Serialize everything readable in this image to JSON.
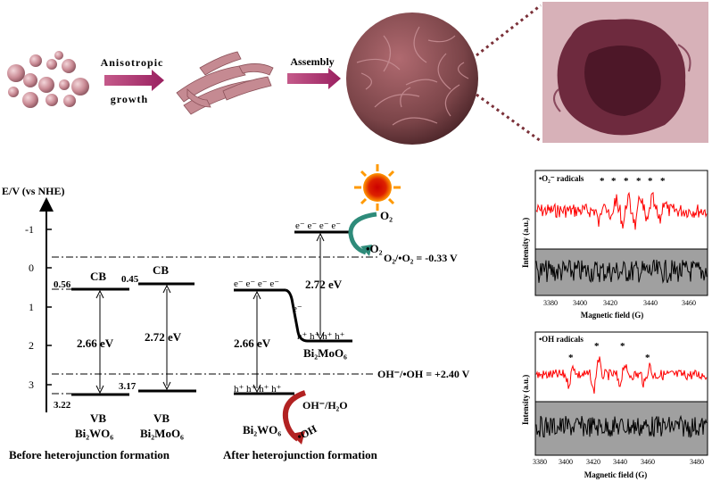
{
  "synthesis": {
    "step1_line1": "Anisotropic",
    "step1_line2": "growth",
    "step2": "Assembly"
  },
  "band_diagram": {
    "axis_label": "E/V (vs NHE)",
    "axis_ticks": [
      "-1",
      "0",
      "1",
      "2",
      "3"
    ],
    "cb_label": "CB",
    "vb_label": "VB",
    "bi2wo6_cb": "0.56",
    "bi2wo6_vb": "3.22",
    "bi2moo6_cb": "0.45",
    "bi2moo6_vb": "3.17",
    "bi2wo6_gap": "2.66 eV",
    "bi2moo6_gap": "2.72 eV",
    "after_gap_wo6": "2.66 eV",
    "after_gap_moo6": "2.72 eV",
    "electrons": "e⁻ e⁻ e⁻ e⁻",
    "electron_single": "e⁻",
    "holes_moo6": "h⁺ h⁺ h⁺ h⁺",
    "holes_wo6": "h⁺ h⁺ h⁺ h⁺",
    "o2_label": "O₂",
    "o2_radical_label": "•O₂",
    "o2_potential": "O₂/•O₂ = -0.33 V",
    "oh_potential": "OH⁻/•OH = +2.40 V",
    "oh_h2o_label": "OH⁻/H₂O",
    "oh_radical_label": "•OH",
    "bi2wo6_name": "Bi₂WO₆",
    "bi2moo6_name": "Bi₂MoO₆",
    "before_caption": "Before heterojunction formation",
    "after_caption": "After heterojunction formation"
  },
  "epr_top": {
    "title": "•O₂⁻ radicals",
    "ylabel": "Intensity (a.u.)",
    "xlabel": "Magnetic field (G)",
    "x_ticks": [
      "3380",
      "3400",
      "3420",
      "3440",
      "3460"
    ],
    "marker": "*"
  },
  "epr_bottom": {
    "title": "•OH radicals",
    "ylabel": "Intensity (a.u.)",
    "xlabel": "Magnetic field (G)",
    "x_ticks": [
      "3380",
      "3400",
      "3420",
      "3440",
      "3460",
      "3480"
    ],
    "marker": "*"
  },
  "colors": {
    "arrow": "#b0306a",
    "particle": "#c98a94",
    "flower": "#7a4448",
    "tem_bg": "#d3a9b2",
    "red_trace": "#ff0000",
    "black_trace": "#000000",
    "teal_arrow": "#2e8b7a",
    "red_arrow": "#b22222",
    "sun": "#ff9900"
  }
}
